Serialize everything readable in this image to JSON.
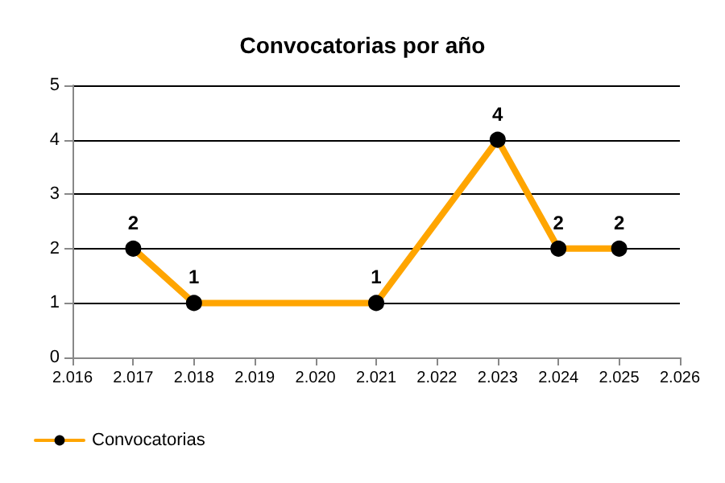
{
  "chart_data": {
    "type": "line",
    "title": "Convocatorias por año",
    "x": [
      2017,
      2018,
      2021,
      2023,
      2024,
      2025
    ],
    "series": [
      {
        "name": "Convocatorias",
        "color": "#ffa500",
        "values": [
          2,
          1,
          1,
          4,
          2,
          2
        ]
      }
    ],
    "xlim": [
      2016,
      2026
    ],
    "xticks": [
      {
        "value": 2016,
        "label": "2.016"
      },
      {
        "value": 2017,
        "label": "2.017"
      },
      {
        "value": 2018,
        "label": "2.018"
      },
      {
        "value": 2019,
        "label": "2.019"
      },
      {
        "value": 2020,
        "label": "2.020"
      },
      {
        "value": 2021,
        "label": "2.021"
      },
      {
        "value": 2022,
        "label": "2.022"
      },
      {
        "value": 2023,
        "label": "2.023"
      },
      {
        "value": 2024,
        "label": "2.024"
      },
      {
        "value": 2025,
        "label": "2.025"
      },
      {
        "value": 2026,
        "label": "2.026"
      }
    ],
    "ylim": [
      0,
      5
    ],
    "yticks": [
      0,
      1,
      2,
      3,
      4,
      5
    ],
    "grid": "y",
    "legend": "bottom left",
    "marker": "circle",
    "line_style": "solid",
    "data_labels": true
  }
}
